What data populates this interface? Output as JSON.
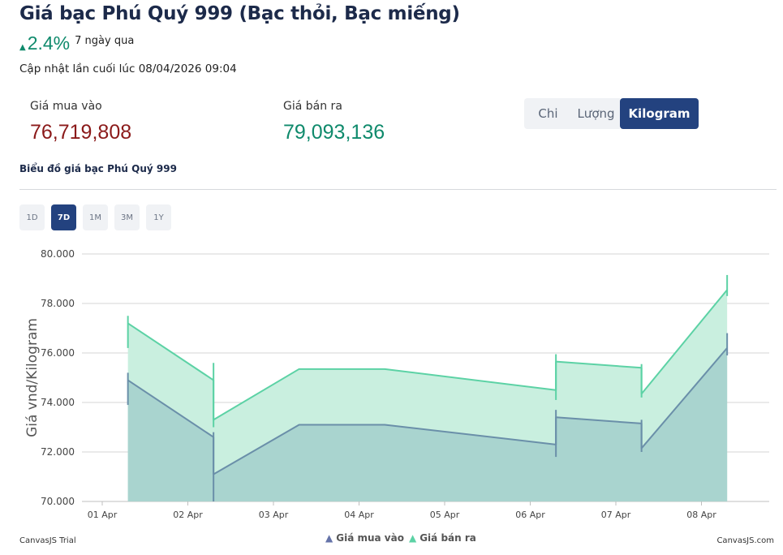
{
  "header": {
    "title": "Giá bạc Phú Quý 999 (Bạc thỏi, Bạc miếng)",
    "change_pct": "2.4%",
    "change_period": "7 ngày qua",
    "updated": "Cập nhật lần cuối lúc 08/04/2026 09:04"
  },
  "prices": {
    "buy_label": "Giá mua vào",
    "buy_value": "76,719,808",
    "sell_label": "Giá bán ra",
    "sell_value": "79,093,136"
  },
  "unit_tabs": [
    "Chi",
    "Lượng",
    "Kilogram"
  ],
  "unit_selected": "Kilogram",
  "chart_title": "Biểu đồ giá bạc Phú Quý 999",
  "ranges": [
    "1D",
    "7D",
    "1M",
    "3M",
    "1Y"
  ],
  "range_selected": "7D",
  "footer": {
    "trial": "CanvasJS Trial",
    "credit": "CanvasJS.com"
  },
  "colors": {
    "up": "#0f8a6c",
    "buy_price": "#8b1a1a",
    "sell_price": "#0f8a6c",
    "active_tab": "#23427f",
    "buy_series": "#6a8fa9",
    "sell_series": "#5cd2a5"
  },
  "chart_data": {
    "type": "area",
    "ylabel": "Giá vnd/Kilogram",
    "xlabel": "",
    "categories": [
      "01 Apr",
      "02 Apr",
      "03 Apr",
      "04 Apr",
      "05 Apr",
      "06 Apr",
      "07 Apr",
      "08 Apr"
    ],
    "y_ticks": [
      "70.000",
      "72.000",
      "74.000",
      "76.000",
      "78.000",
      "80.000"
    ],
    "ylim": [
      70.0,
      80.0
    ],
    "grid": true,
    "legend": "bottom",
    "series": [
      {
        "name": "Giá mua vào",
        "points": [
          {
            "x": 0.3,
            "y": 74.9
          },
          {
            "x": 1.3,
            "y": 72.6
          },
          {
            "x": 1.3,
            "y": 71.1
          },
          {
            "x": 2.3,
            "y": 73.1
          },
          {
            "x": 3.3,
            "y": 73.1
          },
          {
            "x": 5.3,
            "y": 72.3
          },
          {
            "x": 5.3,
            "y": 73.4
          },
          {
            "x": 6.3,
            "y": 73.15
          },
          {
            "x": 6.3,
            "y": 72.15
          },
          {
            "x": 7.3,
            "y": 76.2
          }
        ],
        "candles": [
          {
            "x": 0.3,
            "low": 73.9,
            "high": 75.2
          },
          {
            "x": 1.3,
            "low": 70.0,
            "high": 72.8
          },
          {
            "x": 5.3,
            "low": 71.8,
            "high": 73.7
          },
          {
            "x": 6.3,
            "low": 72.0,
            "high": 73.3
          },
          {
            "x": 7.3,
            "low": 75.9,
            "high": 76.8
          }
        ]
      },
      {
        "name": "Giá bán ra",
        "points": [
          {
            "x": 0.3,
            "y": 77.2
          },
          {
            "x": 1.3,
            "y": 74.9
          },
          {
            "x": 1.3,
            "y": 73.3
          },
          {
            "x": 2.3,
            "y": 75.35
          },
          {
            "x": 3.3,
            "y": 75.35
          },
          {
            "x": 5.3,
            "y": 74.5
          },
          {
            "x": 5.3,
            "y": 75.65
          },
          {
            "x": 6.3,
            "y": 75.4
          },
          {
            "x": 6.3,
            "y": 74.35
          },
          {
            "x": 7.3,
            "y": 78.55
          }
        ],
        "candles": [
          {
            "x": 0.3,
            "low": 76.2,
            "high": 77.5
          },
          {
            "x": 1.3,
            "low": 73.0,
            "high": 75.6
          },
          {
            "x": 5.3,
            "low": 74.1,
            "high": 75.95
          },
          {
            "x": 6.3,
            "low": 74.2,
            "high": 75.55
          },
          {
            "x": 7.3,
            "low": 78.3,
            "high": 79.15
          }
        ]
      }
    ]
  }
}
